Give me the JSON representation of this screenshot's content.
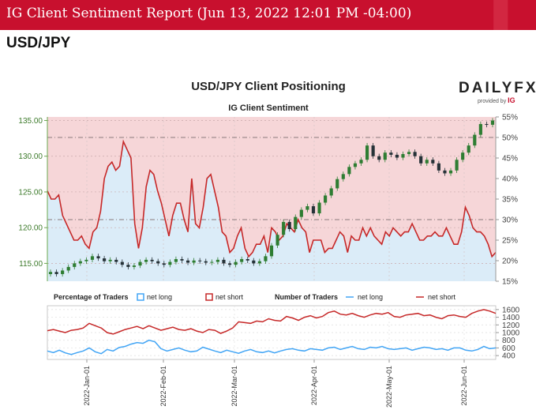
{
  "header": {
    "title": "IG Client Sentiment Report (Jun 13, 2022 12:01 PM -04:00)",
    "pair": "USD/JPY"
  },
  "chart": {
    "title": "USD/JPY Client Positioning",
    "subtitle": "IG Client Sentiment",
    "brand": "DAILYFX",
    "brand_sub": "provided by",
    "brand_ig": "IG"
  },
  "legend": {
    "pct_heading": "Percentage of Traders",
    "num_heading": "Number of Traders",
    "net_long": "net long",
    "net_short": "net short"
  },
  "colors": {
    "price_up": "#2e7d32",
    "price_down": "#263238",
    "net_long": "#42a5f5",
    "net_short": "#c62828",
    "short_zone": "#f6d6d8",
    "long_zone": "#dbecf8"
  },
  "chart_data": [
    {
      "type": "line",
      "title": "USD/JPY Client Positioning",
      "subtitle": "IG Client Sentiment",
      "x_ticks": [
        "2022-Jan-01",
        "2022-Feb-01",
        "2022-Mar-01",
        "2022-Apr-01",
        "2022-May-01",
        "2022-Jun-01"
      ],
      "left_axis": {
        "ticks": [
          "115.00",
          "120.00",
          "125.00",
          "130.00",
          "135.00"
        ],
        "range": [
          112.5,
          135.5
        ]
      },
      "right_axis": {
        "ticks": [
          "15%",
          "20%",
          "25%",
          "30%",
          "35%",
          "40%",
          "45%",
          "50%",
          "55%"
        ],
        "range": [
          15,
          55
        ]
      },
      "price_series_name": "USD/JPY",
      "price_close": [
        113.8,
        113.5,
        114.0,
        114.5,
        115.0,
        115.3,
        115.5,
        116.0,
        115.7,
        115.3,
        115.5,
        115.2,
        114.8,
        114.5,
        114.7,
        115.2,
        115.5,
        115.3,
        115.0,
        114.8,
        115.2,
        115.6,
        115.4,
        115.1,
        115.4,
        115.3,
        115.1,
        115.2,
        115.5,
        115.0,
        114.8,
        115.2,
        115.6,
        115.4,
        115.0,
        115.3,
        116.0,
        117.5,
        119.0,
        120.8,
        119.8,
        121.5,
        122.5,
        123.0,
        122.0,
        123.5,
        124.5,
        125.5,
        126.8,
        127.5,
        128.5,
        129.0,
        129.5,
        131.5,
        130.0,
        129.5,
        130.5,
        130.2,
        129.8,
        130.3,
        130.6,
        130.0,
        129.0,
        129.5,
        129.0,
        128.0,
        127.6,
        128.0,
        129.5,
        130.5,
        131.5,
        133.0,
        134.5,
        134.4,
        135.0
      ],
      "net_short_pct": [
        37,
        35,
        35,
        36,
        31,
        29,
        27,
        25,
        25,
        26,
        24,
        23,
        27,
        28,
        32,
        40,
        43,
        44,
        42,
        43,
        49,
        47,
        45,
        29,
        23,
        28,
        38,
        42,
        41,
        37,
        34,
        30,
        26,
        31,
        34,
        34,
        30,
        27,
        40,
        29,
        28,
        33,
        40,
        41,
        37,
        33,
        27,
        26,
        22,
        23,
        26,
        28,
        23,
        21,
        22,
        24,
        24,
        26,
        22,
        28,
        27,
        25,
        26,
        29,
        28,
        27,
        30,
        28,
        27,
        22,
        25,
        25,
        25,
        22,
        23,
        23,
        25,
        27,
        26,
        22,
        26,
        25,
        25,
        28,
        26,
        28,
        26,
        25,
        24,
        27,
        26,
        28,
        27,
        26,
        27,
        27,
        29,
        27,
        25,
        25,
        26,
        26,
        27,
        26,
        26,
        28,
        26,
        24,
        24,
        27,
        33,
        31,
        28,
        27,
        27,
        26,
        24,
        21,
        22
      ],
      "net_long_pct_note": "net long = 100% - net short",
      "series": [
        {
          "name": "net long",
          "color": "#42a5f5"
        },
        {
          "name": "net short",
          "color": "#c62828"
        }
      ]
    },
    {
      "type": "line",
      "title": "Number of Traders",
      "y_ticks": [
        "400",
        "600",
        "800",
        "1000",
        "1200",
        "1400",
        "1600"
      ],
      "ylim": [
        300,
        1700
      ],
      "series": [
        {
          "name": "net long",
          "color": "#42a5f5",
          "values": [
            520,
            480,
            540,
            470,
            430,
            480,
            520,
            600,
            500,
            450,
            560,
            520,
            610,
            640,
            700,
            740,
            720,
            800,
            760,
            580,
            520,
            560,
            600,
            540,
            500,
            520,
            620,
            570,
            520,
            480,
            540,
            500,
            460,
            520,
            560,
            500,
            480,
            520,
            470,
            520,
            560,
            580,
            540,
            520,
            580,
            560,
            540,
            600,
            620,
            560,
            600,
            640,
            580,
            560,
            620,
            600,
            640,
            580,
            560,
            580,
            600,
            540,
            580,
            620,
            600,
            560,
            580,
            540,
            600,
            600,
            540,
            520,
            560,
            640,
            580,
            600
          ]
        },
        {
          "name": "net short",
          "color": "#c62828",
          "values": [
            1050,
            1080,
            1040,
            1000,
            1060,
            1080,
            1120,
            1240,
            1180,
            1120,
            1000,
            960,
            1020,
            1080,
            1120,
            1160,
            1100,
            1180,
            1120,
            1060,
            1100,
            1140,
            1080,
            1060,
            1100,
            1040,
            1000,
            1080,
            1060,
            980,
            1040,
            1120,
            1280,
            1260,
            1240,
            1300,
            1280,
            1360,
            1320,
            1300,
            1420,
            1380,
            1320,
            1400,
            1440,
            1380,
            1420,
            1520,
            1560,
            1480,
            1460,
            1500,
            1440,
            1400,
            1460,
            1500,
            1480,
            1520,
            1420,
            1400,
            1460,
            1480,
            1500,
            1440,
            1460,
            1400,
            1360,
            1440,
            1460,
            1420,
            1400,
            1500,
            1560,
            1600,
            1560,
            1500
          ]
        }
      ]
    }
  ]
}
